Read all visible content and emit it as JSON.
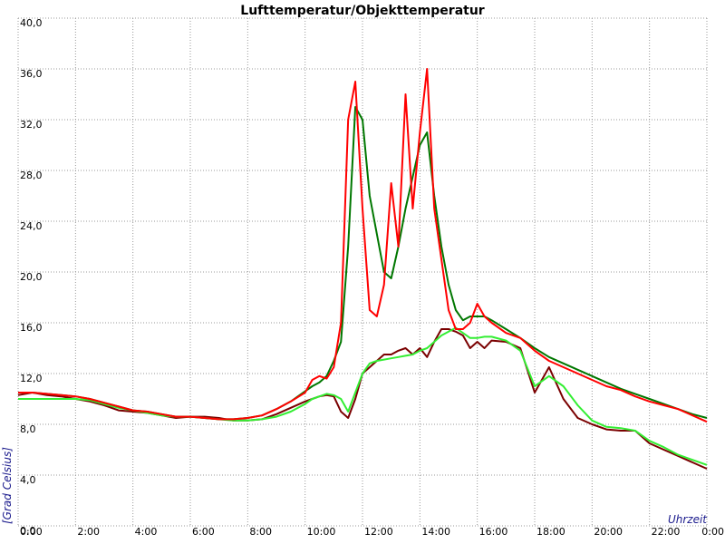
{
  "chart_data": {
    "type": "line",
    "title": "Lufttemperatur/Objekttemperatur",
    "y_label": "[Grad Celsius]",
    "x_label": "Uhrzeit",
    "x": [
      0,
      0.5,
      1,
      1.5,
      2,
      2.5,
      3,
      3.5,
      4,
      4.5,
      5,
      5.5,
      6,
      6.5,
      7,
      7.5,
      8,
      8.5,
      9,
      9.5,
      10,
      10.25,
      10.5,
      10.75,
      11,
      11.25,
      11.5,
      11.75,
      12,
      12.25,
      12.5,
      12.75,
      13,
      13.25,
      13.5,
      13.75,
      14,
      14.25,
      14.5,
      14.75,
      15,
      15.25,
      15.5,
      15.75,
      16,
      16.25,
      16.5,
      17,
      17.5,
      18,
      18.5,
      19,
      19.5,
      20,
      20.5,
      21,
      21.5,
      22,
      22.5,
      23,
      23.5,
      24
    ],
    "series": [
      {
        "color": "#7a0000",
        "values": [
          10.3,
          10.5,
          10.3,
          10.2,
          10,
          9.8,
          9.5,
          9.1,
          9,
          8.9,
          8.7,
          8.5,
          8.6,
          8.6,
          8.5,
          8.3,
          8.3,
          8.4,
          8.8,
          9.3,
          9.8,
          10,
          10.2,
          10.3,
          10.2,
          9,
          8.5,
          10,
          12,
          12.5,
          13,
          13.5,
          13.5,
          13.8,
          14,
          13.5,
          14,
          13.3,
          14.5,
          15.5,
          15.5,
          15.3,
          15,
          14,
          14.5,
          14,
          14.6,
          14.5,
          14,
          10.5,
          12.5,
          10,
          8.5,
          8,
          7.6,
          7.5,
          7.5,
          6.5,
          6,
          5.5,
          5,
          4.5
        ]
      },
      {
        "color": "#33ee33",
        "values": [
          10,
          10,
          10,
          10,
          10,
          9.9,
          9.6,
          9.3,
          9.1,
          8.9,
          8.7,
          8.6,
          8.6,
          8.5,
          8.4,
          8.3,
          8.3,
          8.4,
          8.6,
          9,
          9.6,
          10,
          10.2,
          10.4,
          10.3,
          10,
          9,
          10.5,
          12,
          12.8,
          13,
          13.1,
          13.2,
          13.3,
          13.4,
          13.5,
          13.8,
          14,
          14.5,
          15,
          15.3,
          15.6,
          15.2,
          14.8,
          14.8,
          14.9,
          14.9,
          14.6,
          13.8,
          11,
          11.8,
          11,
          9.5,
          8.3,
          7.8,
          7.7,
          7.5,
          6.7,
          6.2,
          5.6,
          5.2,
          4.8
        ]
      },
      {
        "color": "#007700",
        "values": [
          10.5,
          10.5,
          10.4,
          10.3,
          10.2,
          10,
          9.7,
          9.4,
          9.1,
          9,
          8.8,
          8.6,
          8.6,
          8.5,
          8.4,
          8.4,
          8.5,
          8.7,
          9.2,
          9.8,
          10.6,
          11,
          11.3,
          11.8,
          13,
          14.5,
          22,
          33,
          32,
          26,
          23,
          20,
          19.5,
          22,
          25,
          27.5,
          30,
          31,
          26,
          22,
          19,
          17,
          16.2,
          16.5,
          16.5,
          16.5,
          16.2,
          15.5,
          14.8,
          14,
          13.3,
          12.8,
          12.3,
          11.8,
          11.3,
          10.8,
          10.4,
          10,
          9.6,
          9.2,
          8.8,
          8.5
        ]
      },
      {
        "color": "#ff0000",
        "values": [
          10.5,
          10.5,
          10.4,
          10.3,
          10.2,
          10,
          9.7,
          9.4,
          9.1,
          9,
          8.8,
          8.6,
          8.6,
          8.5,
          8.4,
          8.4,
          8.5,
          8.7,
          9.2,
          9.8,
          10.5,
          11.5,
          11.8,
          11.6,
          12.5,
          16,
          32,
          35,
          25,
          17,
          16.5,
          19,
          27,
          22,
          34,
          25,
          31,
          36,
          25,
          21,
          17,
          15.5,
          15.5,
          16,
          17.5,
          16.5,
          16,
          15.2,
          14.8,
          13.8,
          13,
          12.5,
          12,
          11.5,
          11,
          10.7,
          10.2,
          9.8,
          9.5,
          9.2,
          8.7,
          8.2
        ]
      }
    ],
    "xlim": [
      0,
      24
    ],
    "xticks": [
      {
        "value": 0,
        "label": "0:00"
      },
      {
        "value": 2,
        "label": "2:00"
      },
      {
        "value": 4,
        "label": "4:00"
      },
      {
        "value": 6,
        "label": "6:00"
      },
      {
        "value": 8,
        "label": "8:00"
      },
      {
        "value": 10,
        "label": "10:00"
      },
      {
        "value": 12,
        "label": "12:00"
      },
      {
        "value": 14,
        "label": "14:00"
      },
      {
        "value": 16,
        "label": "16:00"
      },
      {
        "value": 18,
        "label": "18:00"
      },
      {
        "value": 20,
        "label": "20:00"
      },
      {
        "value": 22,
        "label": "22:00"
      },
      {
        "value": 24,
        "label": "0:00"
      }
    ],
    "ylim": [
      0,
      40
    ],
    "yticks": [
      {
        "value": 0,
        "label": "0,0"
      },
      {
        "value": 4,
        "label": "4,0"
      },
      {
        "value": 8,
        "label": "8,0"
      },
      {
        "value": 12,
        "label": "12,0"
      },
      {
        "value": 16,
        "label": "16,0"
      },
      {
        "value": 20,
        "label": "20,0"
      },
      {
        "value": 24,
        "label": "24,0"
      },
      {
        "value": 28,
        "label": "28,0"
      },
      {
        "value": 32,
        "label": "32,0"
      },
      {
        "value": 36,
        "label": "36,0"
      },
      {
        "value": 40,
        "label": "40,0"
      }
    ],
    "grid": true
  }
}
